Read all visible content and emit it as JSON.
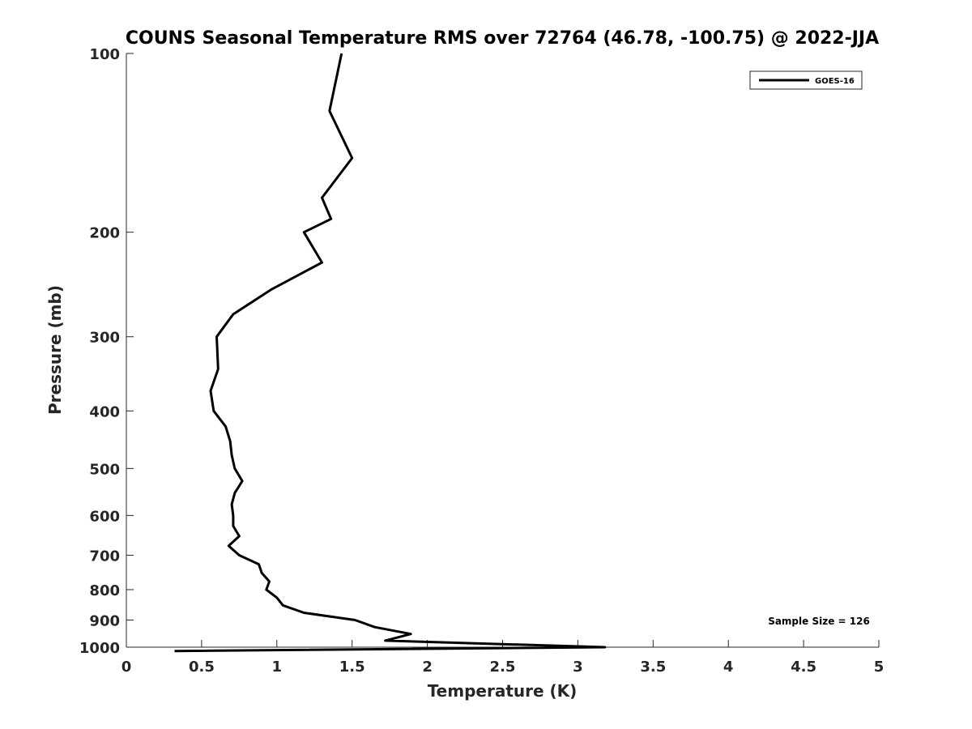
{
  "chart_data": {
    "type": "line",
    "title": "COUNS Seasonal Temperature RMS over 72764 (46.78, -100.75) @ 2022-JJA",
    "xlabel": "Temperature (K)",
    "ylabel": "Pressure (mb)",
    "xlim": [
      0,
      5
    ],
    "ylim": [
      100,
      1000
    ],
    "y_scale": "log",
    "y_reversed": true,
    "grid": false,
    "legend_position": "top-right",
    "x_ticks": [
      "0",
      "0.5",
      "1",
      "1.5",
      "2",
      "2.5",
      "3",
      "3.5",
      "4",
      "4.5",
      "5"
    ],
    "y_ticks": [
      "100",
      "200",
      "300",
      "400",
      "500",
      "600",
      "700",
      "800",
      "900",
      "1000"
    ],
    "annotation": "Sample Size = 126",
    "series": [
      {
        "name": "GOES-16",
        "color": "#000000",
        "points": [
          {
            "pressure": 100,
            "temperature": 1.43
          },
          {
            "pressure": 125,
            "temperature": 1.35
          },
          {
            "pressure": 150,
            "temperature": 1.5
          },
          {
            "pressure": 175,
            "temperature": 1.3
          },
          {
            "pressure": 190,
            "temperature": 1.36
          },
          {
            "pressure": 200,
            "temperature": 1.18
          },
          {
            "pressure": 225,
            "temperature": 1.3
          },
          {
            "pressure": 250,
            "temperature": 0.96
          },
          {
            "pressure": 275,
            "temperature": 0.71
          },
          {
            "pressure": 300,
            "temperature": 0.6
          },
          {
            "pressure": 340,
            "temperature": 0.61
          },
          {
            "pressure": 370,
            "temperature": 0.56
          },
          {
            "pressure": 400,
            "temperature": 0.58
          },
          {
            "pressure": 425,
            "temperature": 0.66
          },
          {
            "pressure": 450,
            "temperature": 0.69
          },
          {
            "pressure": 475,
            "temperature": 0.7
          },
          {
            "pressure": 500,
            "temperature": 0.72
          },
          {
            "pressure": 525,
            "temperature": 0.77
          },
          {
            "pressure": 550,
            "temperature": 0.72
          },
          {
            "pressure": 575,
            "temperature": 0.7
          },
          {
            "pressure": 600,
            "temperature": 0.71
          },
          {
            "pressure": 625,
            "temperature": 0.71
          },
          {
            "pressure": 650,
            "temperature": 0.75
          },
          {
            "pressure": 675,
            "temperature": 0.68
          },
          {
            "pressure": 700,
            "temperature": 0.75
          },
          {
            "pressure": 725,
            "temperature": 0.88
          },
          {
            "pressure": 750,
            "temperature": 0.9
          },
          {
            "pressure": 775,
            "temperature": 0.95
          },
          {
            "pressure": 800,
            "temperature": 0.93
          },
          {
            "pressure": 825,
            "temperature": 1.0
          },
          {
            "pressure": 850,
            "temperature": 1.04
          },
          {
            "pressure": 875,
            "temperature": 1.18
          },
          {
            "pressure": 900,
            "temperature": 1.52
          },
          {
            "pressure": 925,
            "temperature": 1.65
          },
          {
            "pressure": 950,
            "temperature": 1.89
          },
          {
            "pressure": 975,
            "temperature": 1.72
          },
          {
            "pressure": 1000,
            "temperature": 3.18
          },
          {
            "pressure": 1015,
            "temperature": 0.32
          }
        ]
      }
    ]
  }
}
